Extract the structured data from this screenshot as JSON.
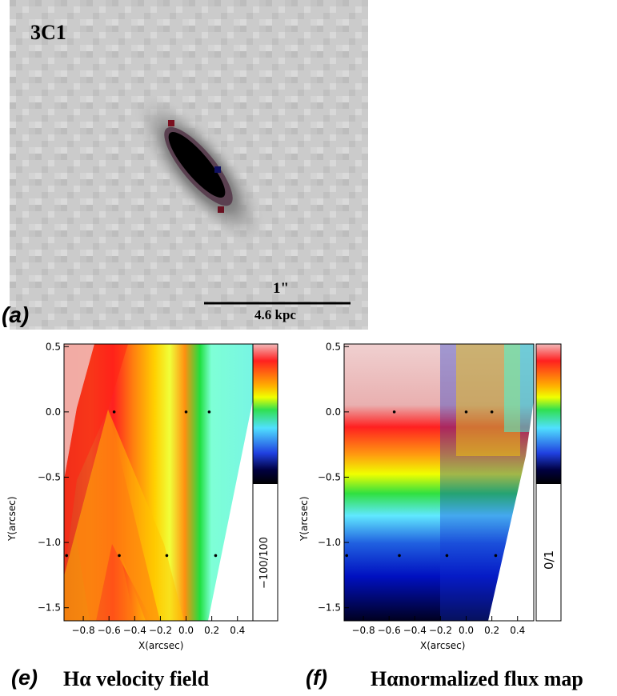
{
  "panel_a": {
    "object_name": "3C1",
    "label": "(a)",
    "scale_top": "1\"",
    "scale_bottom": "4.6 kpc"
  },
  "panel_e": {
    "label": "(e)",
    "caption": "Hα velocity field",
    "xlabel": "X(arcsec)",
    "ylabel": "Y(arcsec)",
    "colorbar_label": "−100/100"
  },
  "panel_f": {
    "label": "(f)",
    "caption": "Hαnormalized flux map",
    "xlabel": "X(arcsec)",
    "ylabel": "Y(arcsec)",
    "colorbar_label": "0/1"
  },
  "chart_data": [
    {
      "type": "heatmap",
      "title": "Hα velocity field",
      "xlabel": "X(arcsec)",
      "ylabel": "Y(arcsec)",
      "xlim": [
        -0.95,
        0.52
      ],
      "ylim": [
        -1.6,
        0.52
      ],
      "x_ticks": [
        "-0.8",
        "-0.6",
        "-0.4",
        "-0.2",
        "0.0",
        "0.2",
        "0.4"
      ],
      "y_ticks": [
        "0.5",
        "0.0",
        "-0.5",
        "-1.0",
        "-1.5"
      ],
      "colorbar_range": "-100/100",
      "sample_points": [
        {
          "x": -0.56,
          "y": 0.0
        },
        {
          "x": 0.0,
          "y": 0.0
        },
        {
          "x": 0.18,
          "y": 0.0
        },
        {
          "x": -0.93,
          "y": -1.1
        },
        {
          "x": -0.52,
          "y": -1.1
        },
        {
          "x": -0.15,
          "y": -1.1
        },
        {
          "x": 0.23,
          "y": -1.1
        }
      ]
    },
    {
      "type": "heatmap",
      "title": "Hαnormalized flux map",
      "xlabel": "X(arcsec)",
      "ylabel": "Y(arcsec)",
      "xlim": [
        -0.95,
        0.52
      ],
      "ylim": [
        -1.6,
        0.52
      ],
      "x_ticks": [
        "-0.8",
        "-0.6",
        "-0.4",
        "-0.2",
        "0.0",
        "0.2",
        "0.4"
      ],
      "y_ticks": [
        "0.5",
        "0.0",
        "-0.5",
        "-1.0",
        "-1.5"
      ],
      "colorbar_range": "0/1",
      "sample_points": [
        {
          "x": -0.56,
          "y": 0.0
        },
        {
          "x": 0.0,
          "y": 0.0
        },
        {
          "x": 0.2,
          "y": 0.0
        },
        {
          "x": -0.93,
          "y": -1.1
        },
        {
          "x": -0.52,
          "y": -1.1
        },
        {
          "x": -0.15,
          "y": -1.1
        },
        {
          "x": 0.23,
          "y": -1.1
        }
      ]
    }
  ]
}
